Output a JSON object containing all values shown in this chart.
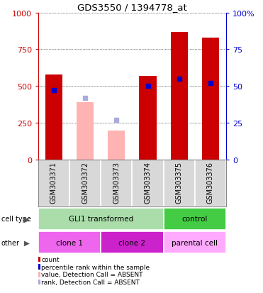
{
  "title": "GDS3550 / 1394778_at",
  "samples": [
    "GSM303371",
    "GSM303372",
    "GSM303373",
    "GSM303374",
    "GSM303375",
    "GSM303376"
  ],
  "counts": [
    580,
    390,
    195,
    570,
    870,
    830
  ],
  "percentiles": [
    47,
    42,
    27,
    50,
    55,
    52
  ],
  "absent": [
    false,
    true,
    true,
    false,
    false,
    false
  ],
  "ylim_left": [
    0,
    1000
  ],
  "ylim_right": [
    0,
    100
  ],
  "yticks_left": [
    0,
    250,
    500,
    750,
    1000
  ],
  "yticks_right": [
    0,
    25,
    50,
    75,
    100
  ],
  "bar_color_present": "#cc0000",
  "bar_color_absent": "#ffb3b3",
  "dot_color_present": "#0000cc",
  "dot_color_absent": "#aaaadd",
  "bar_width": 0.55,
  "cell_type_groups": [
    {
      "label": "GLI1 transformed",
      "span": [
        0,
        4
      ],
      "color": "#aaddaa"
    },
    {
      "label": "control",
      "span": [
        4,
        6
      ],
      "color": "#44cc44"
    }
  ],
  "other_groups": [
    {
      "label": "clone 1",
      "span": [
        0,
        2
      ],
      "color": "#ee66ee"
    },
    {
      "label": "clone 2",
      "span": [
        2,
        4
      ],
      "color": "#cc22cc"
    },
    {
      "label": "parental cell",
      "span": [
        4,
        6
      ],
      "color": "#ffaaff"
    }
  ],
  "left_axis_color": "#cc0000",
  "right_axis_color": "#0000cc",
  "bg_color": "#d8d8d8",
  "legend_items": [
    {
      "label": "count",
      "color": "#cc0000"
    },
    {
      "label": "percentile rank within the sample",
      "color": "#0000cc"
    },
    {
      "label": "value, Detection Call = ABSENT",
      "color": "#ffb3b3"
    },
    {
      "label": "rank, Detection Call = ABSENT",
      "color": "#aaaadd"
    }
  ]
}
